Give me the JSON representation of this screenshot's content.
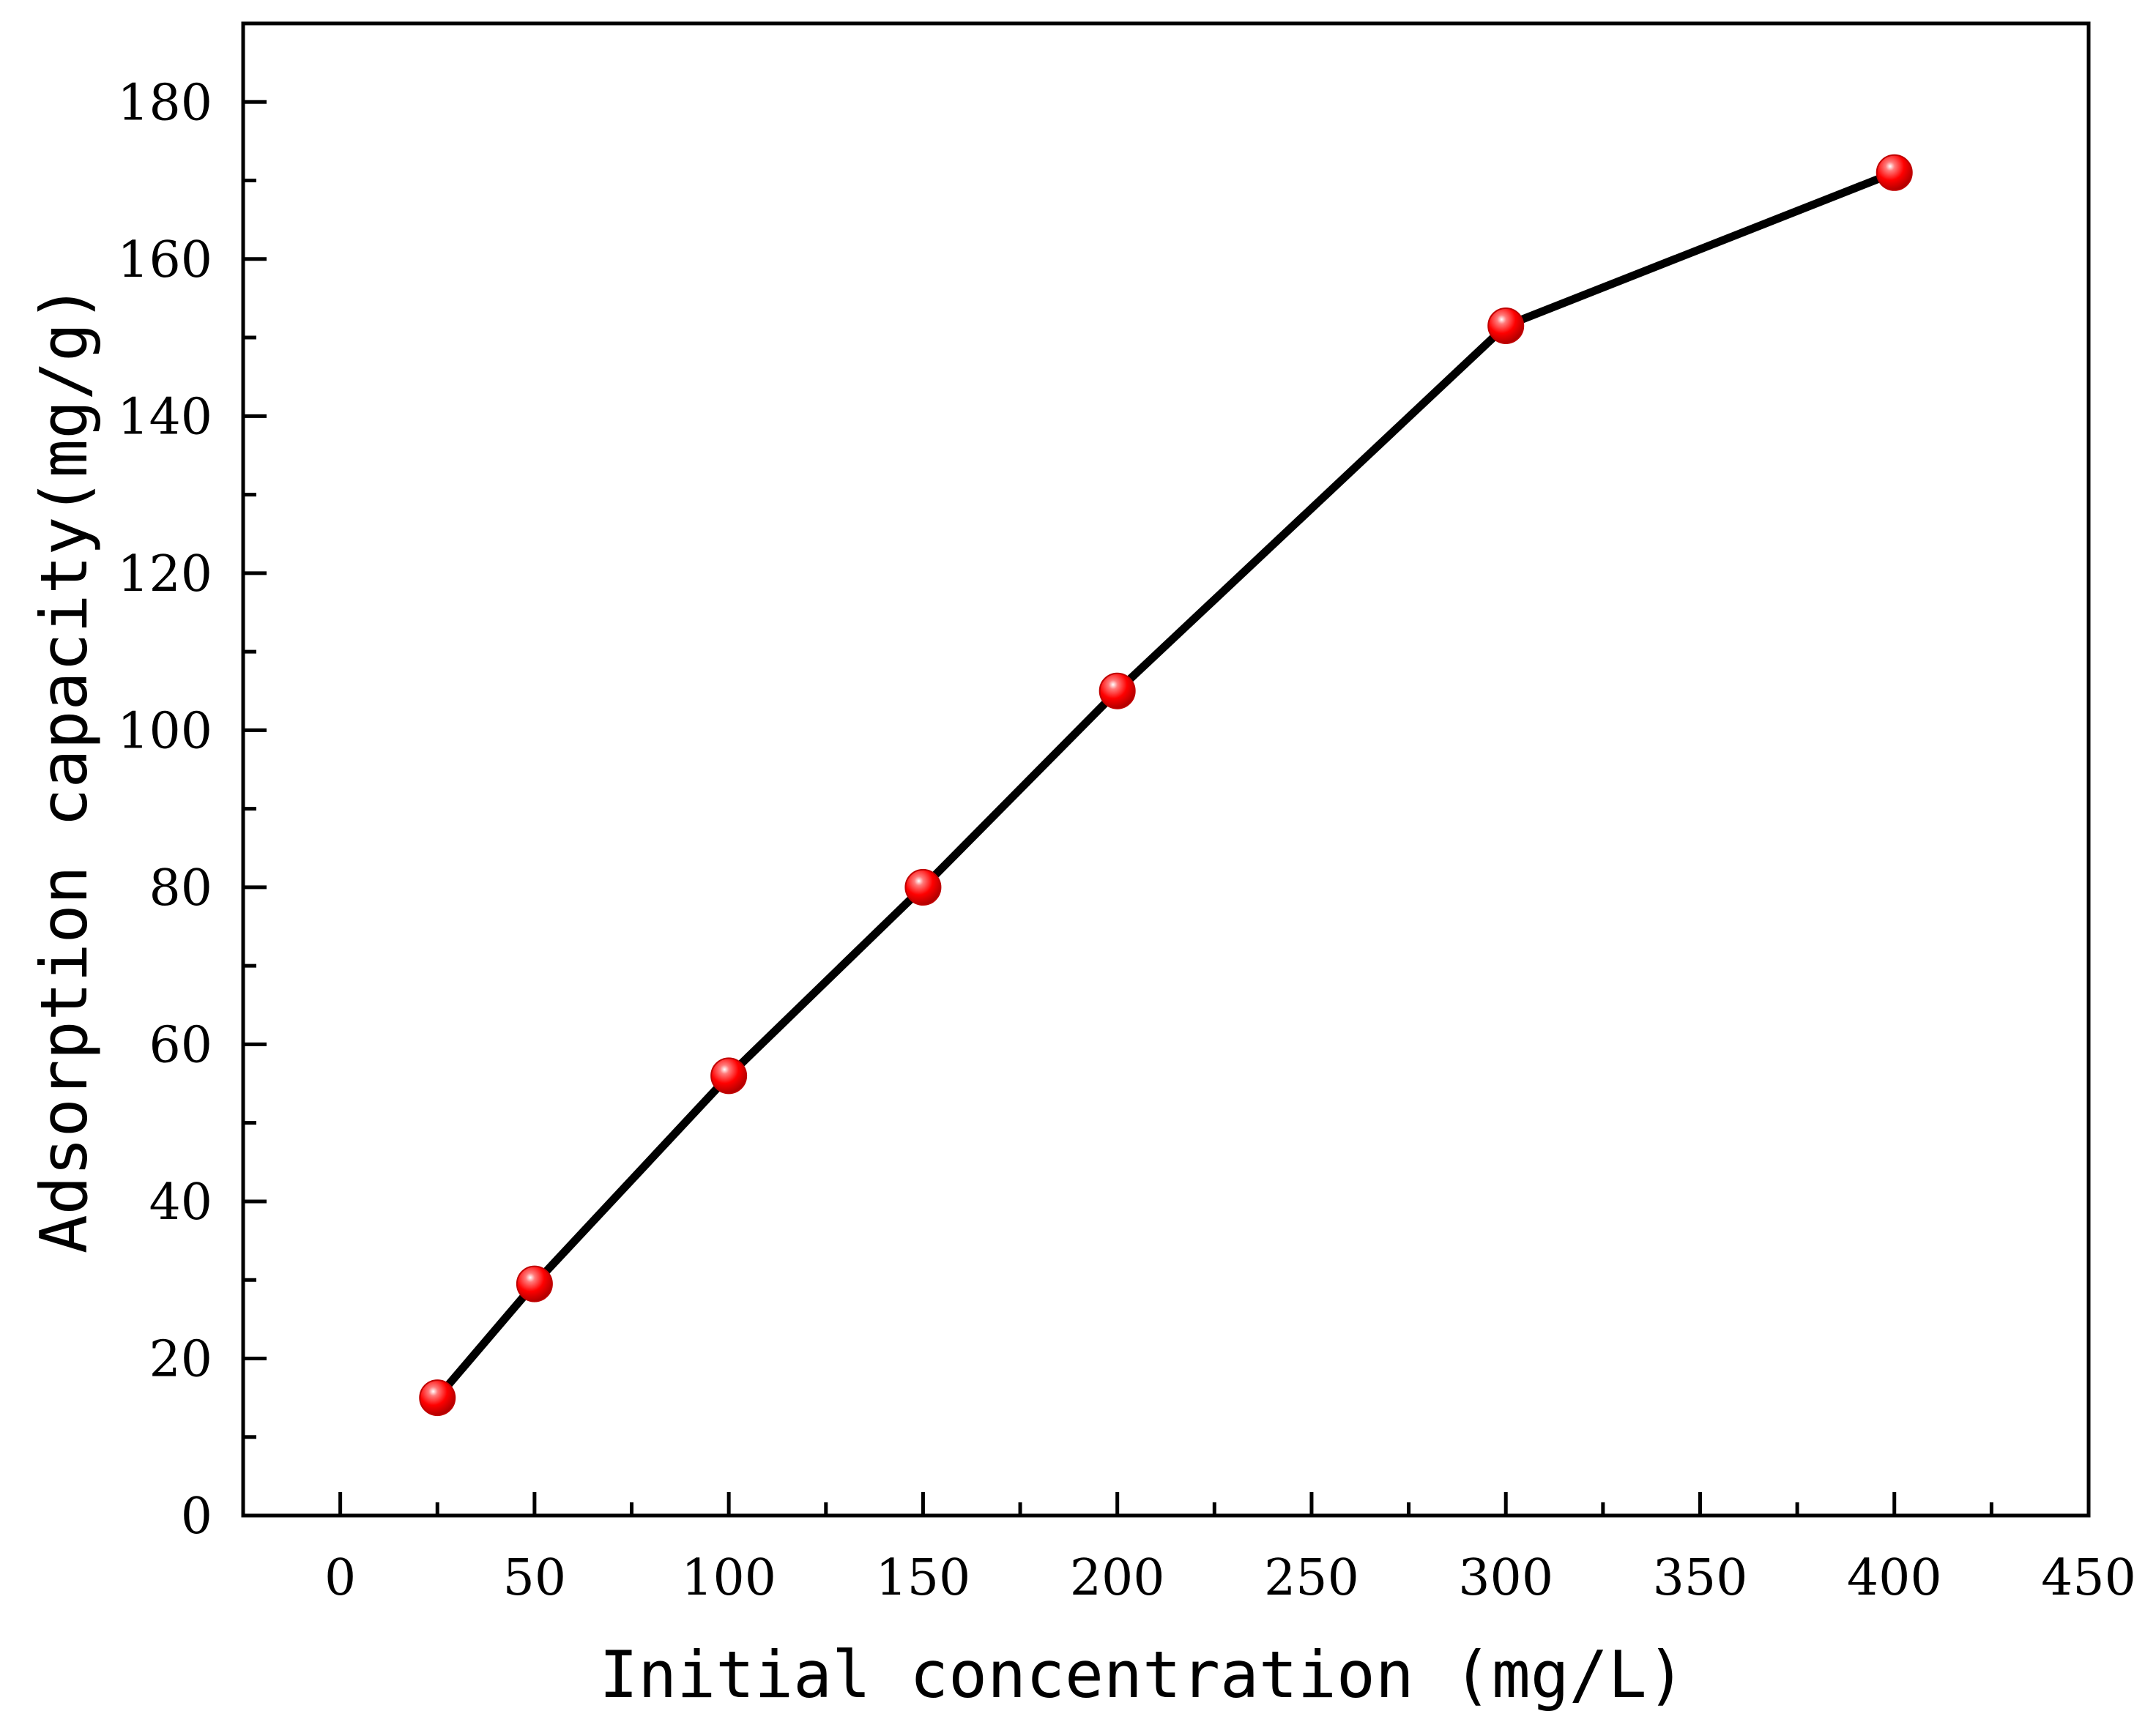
{
  "chart_data": {
    "type": "line",
    "title": "",
    "xlabel": "Initial concentration (mg/L)",
    "ylabel": "Adsorption capacity(mg/g)",
    "xlim": [
      -25,
      450
    ],
    "ylim": [
      0,
      190
    ],
    "xticks": [
      0,
      50,
      100,
      150,
      200,
      250,
      300,
      350,
      400,
      450
    ],
    "yticks": [
      0,
      20,
      40,
      60,
      80,
      100,
      120,
      140,
      160,
      180
    ],
    "x_minor_step": 25,
    "y_minor_step": 10,
    "grid": false,
    "series": [
      {
        "name": "Adsorption capacity",
        "line_color": "#000000",
        "marker_color": "#ff0000",
        "points": [
          {
            "x": 25,
            "y": 15
          },
          {
            "x": 50,
            "y": 29.5
          },
          {
            "x": 100,
            "y": 56
          },
          {
            "x": 150,
            "y": 80
          },
          {
            "x": 200,
            "y": 105
          },
          {
            "x": 300,
            "y": 151.5
          },
          {
            "x": 400,
            "y": 171
          }
        ]
      }
    ]
  }
}
